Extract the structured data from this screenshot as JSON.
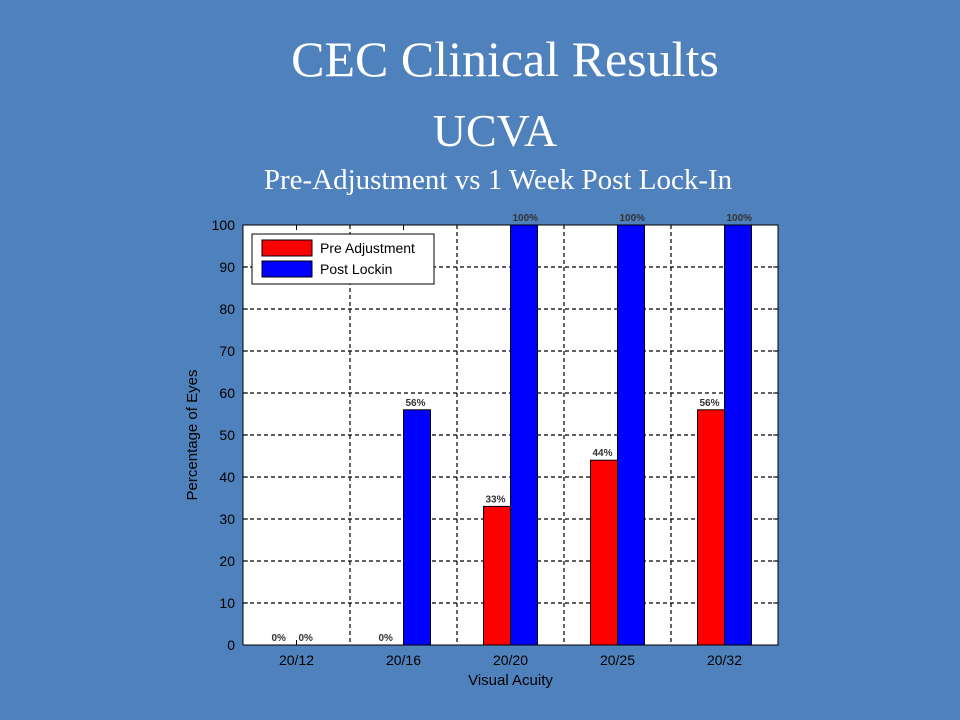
{
  "slide": {
    "title": "CEC Clinical Results",
    "subtitle": "UCVA",
    "caption": "Pre-Adjustment vs 1 Week Post Lock-In"
  },
  "colors": {
    "background": "#4f81bd",
    "plot_background": "#ffffff",
    "pre": "#ff0000",
    "post": "#0000ff"
  },
  "chart_data": {
    "type": "bar",
    "title": "",
    "xlabel": "Visual Acuity",
    "ylabel": "Percentage of Eyes",
    "categories": [
      "20/12",
      "20/16",
      "20/20",
      "20/25",
      "20/32"
    ],
    "ylim": [
      0,
      100
    ],
    "yticks": [
      0,
      10,
      20,
      30,
      40,
      50,
      60,
      70,
      80,
      90,
      100
    ],
    "grid": true,
    "legend_position": "top-left",
    "series": [
      {
        "name": "Pre Adjustment",
        "color": "#ff0000",
        "values": [
          0,
          0,
          33,
          44,
          56
        ],
        "labels": [
          "0%",
          "0%",
          "33%",
          "44%",
          "56%"
        ]
      },
      {
        "name": "Post Lockin",
        "color": "#0000ff",
        "values": [
          0,
          56,
          100,
          100,
          100
        ],
        "labels": [
          "0%",
          "56%",
          "100%",
          "100%",
          "100%"
        ]
      }
    ]
  }
}
